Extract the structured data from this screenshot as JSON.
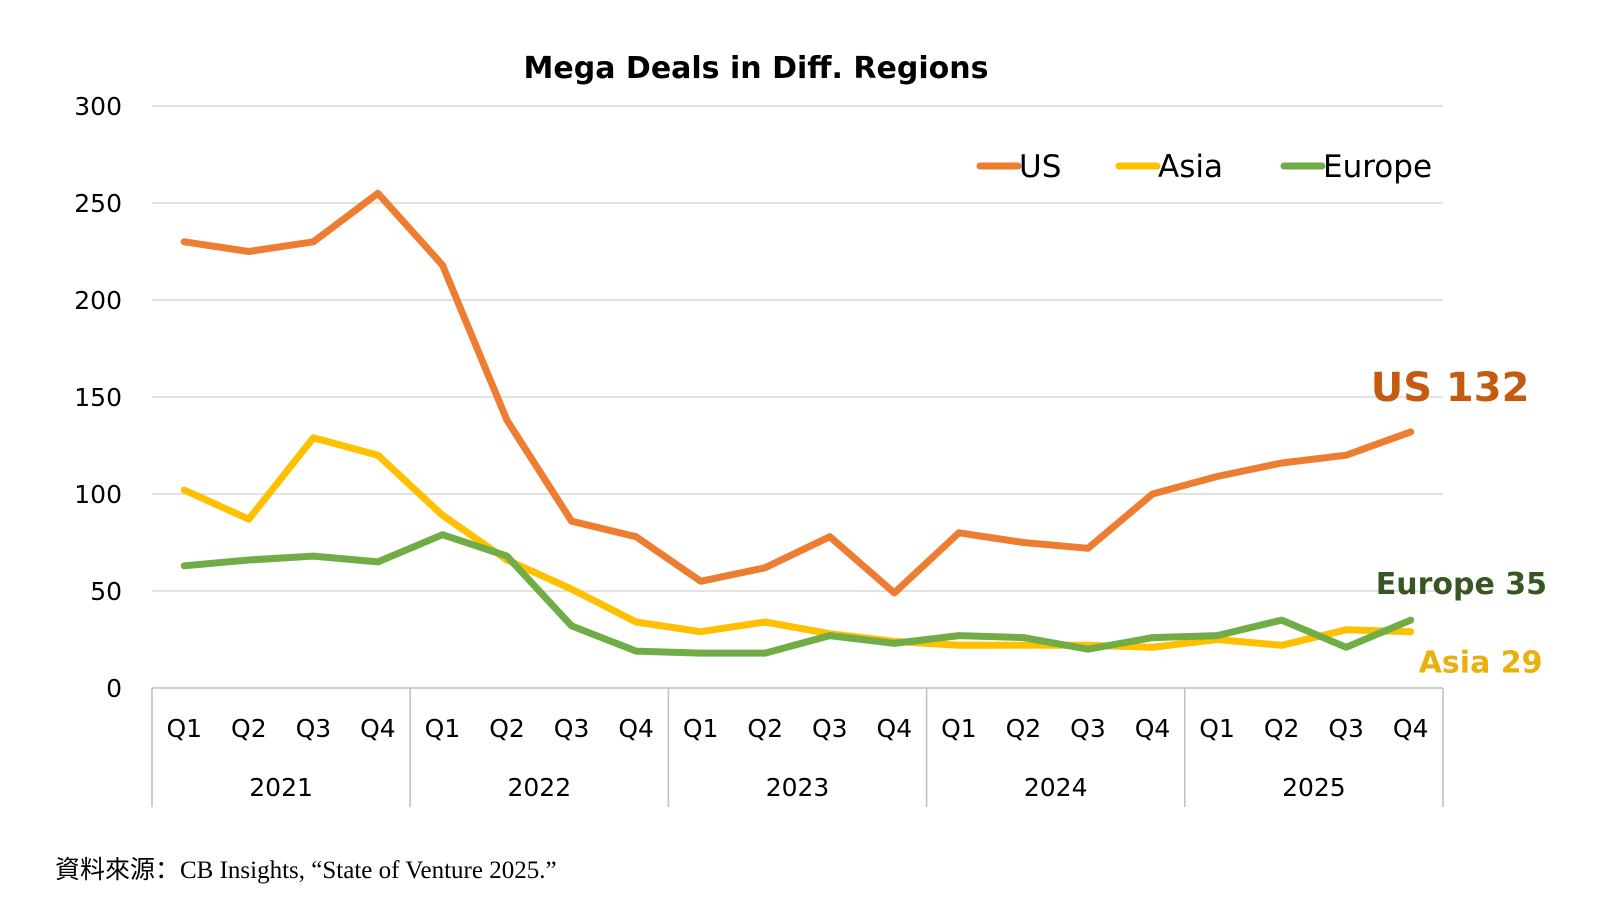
{
  "chart_data": {
    "type": "line",
    "title": "Mega Deals in Diff. Regions",
    "ylim": [
      0,
      300
    ],
    "yticks": [
      0,
      50,
      100,
      150,
      200,
      250,
      300
    ],
    "grid": true,
    "legend": "top-right",
    "years": [
      "2021",
      "2022",
      "2023",
      "2024",
      "2025"
    ],
    "quarters": [
      "Q1",
      "Q2",
      "Q3",
      "Q4"
    ],
    "categories": [
      "2021 Q1",
      "2021 Q2",
      "2021 Q3",
      "2021 Q4",
      "2022 Q1",
      "2022 Q2",
      "2022 Q3",
      "2022 Q4",
      "2023 Q1",
      "2023 Q2",
      "2023 Q3",
      "2023 Q4",
      "2024 Q1",
      "2024 Q2",
      "2024 Q3",
      "2024 Q4",
      "2025 Q1",
      "2025 Q2",
      "2025 Q3",
      "2025 Q4"
    ],
    "series": [
      {
        "name": "US",
        "color": "#ED7D31",
        "values": [
          230,
          225,
          230,
          255,
          218,
          138,
          86,
          78,
          55,
          62,
          78,
          49,
          80,
          75,
          72,
          100,
          109,
          116,
          120,
          132
        ]
      },
      {
        "name": "Asia",
        "color": "#FFC000",
        "values": [
          102,
          87,
          129,
          120,
          89,
          66,
          51,
          34,
          29,
          34,
          28,
          24,
          22,
          22,
          22,
          21,
          25,
          22,
          30,
          29
        ]
      },
      {
        "name": "Europe",
        "color": "#70AD47",
        "values": [
          63,
          66,
          68,
          65,
          79,
          68,
          32,
          19,
          18,
          18,
          27,
          23,
          27,
          26,
          20,
          26,
          27,
          35,
          21,
          35
        ]
      }
    ],
    "annotations": [
      {
        "series": "US",
        "text": "US  132",
        "color": "#C55A11"
      },
      {
        "series": "Europe",
        "text": "Europe 35",
        "color": "#375623"
      },
      {
        "series": "Asia",
        "text": "Asia 29",
        "color": "#E8B10E"
      }
    ]
  },
  "source": "資料來源：CB Insights, “State of Venture 2025.”"
}
